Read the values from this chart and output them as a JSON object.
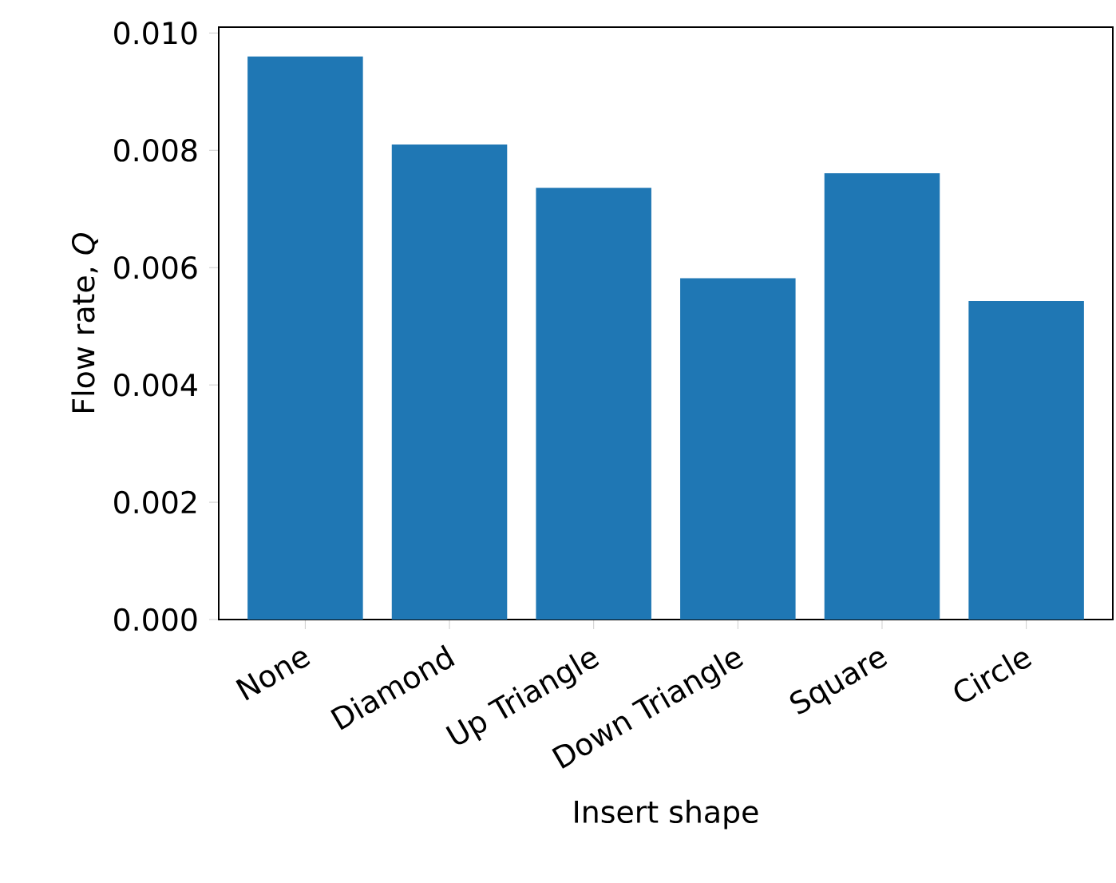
{
  "chart_data": {
    "type": "bar",
    "xlabel": "Insert shape",
    "ylabel": "Flow rate, *Q*",
    "categories": [
      "None",
      "Diamond",
      "Up Triangle",
      "Down Triangle",
      "Square",
      "Circle"
    ],
    "values": [
      0.0096,
      0.0081,
      0.00736,
      0.00582,
      0.00761,
      0.00543
    ],
    "color": "#1f77b4",
    "ylim": [
      0,
      0.0101
    ],
    "yticks": [
      {
        "value": 0,
        "label": "0.000"
      },
      {
        "value": 0.002,
        "label": "0.002"
      },
      {
        "value": 0.004,
        "label": "0.004"
      },
      {
        "value": 0.006,
        "label": "0.006"
      },
      {
        "value": 0.008,
        "label": "0.008"
      },
      {
        "value": 0.01,
        "label": "0.010"
      }
    ]
  }
}
